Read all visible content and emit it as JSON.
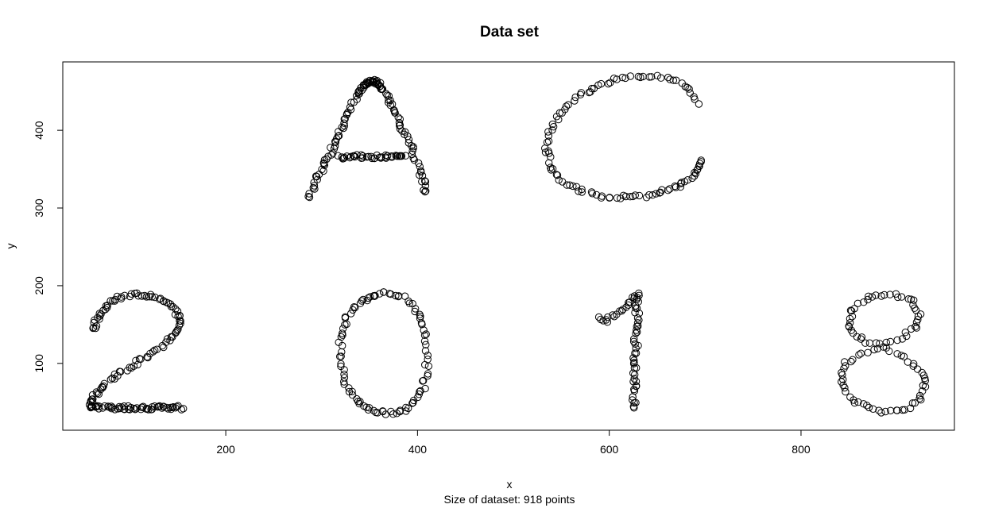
{
  "chart_data": {
    "type": "scatter",
    "title": "Data set",
    "xlabel": "x",
    "ylabel": "y",
    "subtitle": "Size of dataset: 918 points",
    "xlim": [
      30,
      960
    ],
    "ylim": [
      14,
      488
    ],
    "x_ticks": [
      200,
      400,
      600,
      800
    ],
    "y_ticks": [
      100,
      200,
      300,
      400
    ],
    "grid": false,
    "legend": "none",
    "marker": "open-circle",
    "marker_color": "#000000",
    "point_count": 918,
    "strokes": [
      {
        "name": "2",
        "points": [
          [
            62,
            143
          ],
          [
            64,
            150
          ],
          [
            68,
            160
          ],
          [
            74,
            170
          ],
          [
            80,
            178
          ],
          [
            88,
            184
          ],
          [
            98,
            187
          ],
          [
            108,
            188
          ],
          [
            118,
            187
          ],
          [
            128,
            185
          ],
          [
            138,
            180
          ],
          [
            146,
            172
          ],
          [
            150,
            163
          ],
          [
            153,
            153
          ],
          [
            150,
            143
          ],
          [
            144,
            133
          ],
          [
            136,
            124
          ],
          [
            126,
            115
          ],
          [
            115,
            107
          ],
          [
            104,
            99
          ],
          [
            93,
            91
          ],
          [
            83,
            83
          ],
          [
            74,
            74
          ],
          [
            67,
            65
          ],
          [
            62,
            57
          ],
          [
            59,
            49
          ],
          [
            58,
            44
          ]
        ],
        "density": 4
      },
      {
        "name": "2",
        "points": [
          [
            58,
            43
          ],
          [
            155,
            43
          ]
        ],
        "density": 60
      },
      {
        "name": "A",
        "points": [
          [
            287,
            313
          ],
          [
            297,
            340
          ],
          [
            307,
            366
          ],
          [
            317,
            392
          ],
          [
            327,
            418
          ],
          [
            337,
            444
          ],
          [
            345,
            458
          ],
          [
            352,
            464
          ],
          [
            358,
            462
          ],
          [
            364,
            452
          ],
          [
            374,
            428
          ],
          [
            384,
            404
          ],
          [
            394,
            376
          ],
          [
            404,
            344
          ],
          [
            410,
            317
          ]
        ],
        "density": 9
      },
      {
        "name": "A",
        "points": [
          [
            318,
            366
          ],
          [
            388,
            366
          ]
        ],
        "density": 40
      },
      {
        "name": "0",
        "points": [
          [
            368,
            190
          ],
          [
            385,
            184
          ],
          [
            398,
            170
          ],
          [
            406,
            150
          ],
          [
            410,
            125
          ],
          [
            410,
            95
          ],
          [
            406,
            70
          ],
          [
            398,
            52
          ],
          [
            387,
            41
          ],
          [
            372,
            36
          ],
          [
            357,
            37
          ],
          [
            343,
            44
          ],
          [
            332,
            57
          ],
          [
            324,
            76
          ],
          [
            320,
            100
          ],
          [
            319,
            125
          ],
          [
            322,
            148
          ],
          [
            330,
            168
          ],
          [
            342,
            181
          ],
          [
            354,
            188
          ],
          [
            368,
            190
          ]
        ],
        "density": 5
      },
      {
        "name": "1",
        "points": [
          [
            589,
            158
          ],
          [
            597,
            155
          ],
          [
            607,
            163
          ],
          [
            617,
            171
          ],
          [
            624,
            180
          ],
          [
            630,
            190
          ]
        ],
        "density": 4
      },
      {
        "name": "1",
        "points": [
          [
            630,
            190
          ],
          [
            629,
            160
          ],
          [
            628,
            130
          ],
          [
            627,
            100
          ],
          [
            626,
            70
          ],
          [
            626,
            40
          ]
        ],
        "density": 9
      },
      {
        "name": "C",
        "points": [
          [
            693,
            433
          ],
          [
            685,
            450
          ],
          [
            672,
            462
          ],
          [
            656,
            469
          ],
          [
            638,
            471
          ],
          [
            620,
            469
          ],
          [
            603,
            464
          ],
          [
            588,
            457
          ],
          [
            573,
            448
          ],
          [
            560,
            436
          ],
          [
            549,
            422
          ],
          [
            541,
            406
          ],
          [
            536,
            389
          ],
          [
            535,
            373
          ],
          [
            539,
            356
          ],
          [
            546,
            341
          ],
          [
            557,
            330
          ],
          [
            570,
            322
          ],
          [
            585,
            317
          ],
          [
            601,
            314
          ],
          [
            617,
            314
          ],
          [
            633,
            315
          ],
          [
            647,
            318
          ],
          [
            660,
            322
          ],
          [
            672,
            328
          ],
          [
            682,
            335
          ],
          [
            690,
            344
          ],
          [
            695,
            354
          ],
          [
            697,
            362
          ]
        ],
        "density": 4
      },
      {
        "name": "8",
        "points": [
          [
            885,
            123
          ],
          [
            865,
            129
          ],
          [
            853,
            141
          ],
          [
            850,
            156
          ],
          [
            856,
            172
          ],
          [
            870,
            184
          ],
          [
            888,
            189
          ],
          [
            906,
            187
          ],
          [
            919,
            177
          ],
          [
            924,
            162
          ],
          [
            919,
            146
          ],
          [
            906,
            133
          ],
          [
            885,
            123
          ],
          [
            864,
            114
          ],
          [
            848,
            101
          ],
          [
            842,
            86
          ],
          [
            845,
            68
          ],
          [
            855,
            52
          ],
          [
            870,
            42
          ],
          [
            888,
            37
          ],
          [
            906,
            39
          ],
          [
            920,
            48
          ],
          [
            928,
            63
          ],
          [
            928,
            81
          ],
          [
            920,
            97
          ],
          [
            906,
            109
          ],
          [
            885,
            123
          ]
        ],
        "density": 4
      }
    ]
  }
}
